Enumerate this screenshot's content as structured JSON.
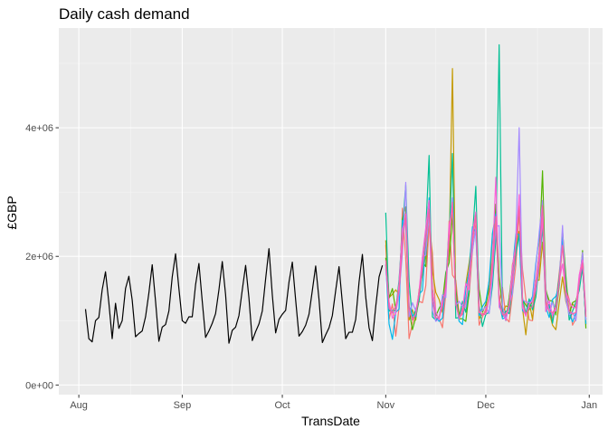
{
  "chart_data": {
    "type": "line",
    "title": "Daily cash demand",
    "xlabel": "TransDate",
    "ylabel": "£GBP",
    "x_ticks": [
      "Aug",
      "Sep",
      "Oct",
      "Nov",
      "Dec",
      "Jan"
    ],
    "y_ticks": [
      "0e+00",
      "2e+06",
      "4e+06"
    ],
    "y_tick_values": [
      0,
      2000000,
      4000000
    ],
    "ylim": [
      -150000,
      5550000
    ],
    "xlim": [
      "2017-07-26",
      "2018-01-05"
    ],
    "grid": true,
    "legend": "none",
    "colors": {
      "panel_bg": "#EBEBEB",
      "grid_major": "#FFFFFF",
      "grid_minor": "#F5F5F5",
      "history": "#000000",
      "forecasts": [
        "#F8766D",
        "#C49A00",
        "#53B400",
        "#00C094",
        "#00B6EB",
        "#A58AFF",
        "#FB61D7",
        "#F564A3"
      ]
    },
    "history": {
      "name": "",
      "start_date": "2017-08-03",
      "values": [
        1180000,
        720000,
        670000,
        1000000,
        1050000,
        1480000,
        1760000,
        1280000,
        720000,
        1270000,
        880000,
        1000000,
        1500000,
        1690000,
        1320000,
        750000,
        800000,
        840000,
        1060000,
        1430000,
        1870000,
        1300000,
        680000,
        900000,
        940000,
        1150000,
        1680000,
        2040000,
        1500000,
        1000000,
        960000,
        1060000,
        1060000,
        1560000,
        1890000,
        1300000,
        740000,
        840000,
        960000,
        1110000,
        1480000,
        1920000,
        1400000,
        650000,
        850000,
        900000,
        1080000,
        1480000,
        1860000,
        1350000,
        690000,
        830000,
        950000,
        1150000,
        1650000,
        2120000,
        1400000,
        810000,
        1020000,
        1100000,
        1160000,
        1600000,
        1910000,
        1320000,
        760000,
        830000,
        930000,
        1100000,
        1470000,
        1850000,
        1330000,
        660000,
        780000,
        890000,
        1080000,
        1470000,
        1840000,
        1280000,
        720000,
        820000,
        820000,
        1020000,
        1600000,
        2030000,
        1370000,
        890000,
        690000,
        1220000,
        1680000,
        1860000
      ]
    },
    "forecast": {
      "start_date": "2017-11-01",
      "n_series": 8,
      "series": [
        {
          "color": "#F8766D",
          "values": [
            2180000,
            1020000,
            1260000,
            760000,
            1210000,
            2750000,
            1960000,
            720000,
            960000,
            1120000,
            1300000,
            1280000,
            1540000,
            2480000,
            2050000,
            1110000,
            1040000,
            890000,
            1420000,
            2550000,
            1710000,
            1630000,
            1090000,
            1200000,
            1150000,
            1400000,
            2080000,
            2500000,
            930000,
            1060000,
            1180000,
            1630000,
            1930000,
            2800000,
            1280000,
            1520000,
            1040000,
            980000,
            1410000,
            1860000,
            2690000,
            1800000,
            1340000,
            1010000,
            1000000,
            1500000,
            1780000,
            2540000,
            1310000,
            1170000,
            1030000,
            1280000,
            1740000,
            2240000,
            1510000,
            1330000,
            930000,
            1030000,
            1690000,
            1990000,
            940000
          ]
        },
        {
          "color": "#C49A00",
          "values": [
            2250000,
            1360000,
            1410000,
            1480000,
            1410000,
            2280000,
            2670000,
            1010000,
            1170000,
            1010000,
            1480000,
            1710000,
            2030000,
            2890000,
            1780000,
            1440000,
            1330000,
            1130000,
            1660000,
            2060000,
            4920000,
            1300000,
            1120000,
            1100000,
            1570000,
            1900000,
            2300000,
            2660000,
            1030000,
            1110000,
            1090000,
            1380000,
            2350000,
            2500000,
            1370000,
            1120000,
            1230000,
            1210000,
            1880000,
            2080000,
            2390000,
            1190000,
            780000,
            1290000,
            1020000,
            1630000,
            1630000,
            2220000,
            1500000,
            1140000,
            930000,
            860000,
            1280000,
            1680000,
            1300000,
            1130000,
            1260000,
            1200000,
            1540000,
            1860000,
            980000
          ]
        },
        {
          "color": "#53B400",
          "values": [
            1980000,
            1350000,
            1500000,
            1160000,
            1460000,
            2580000,
            2770000,
            1170000,
            860000,
            1050000,
            1330000,
            1920000,
            1840000,
            2780000,
            1490000,
            1070000,
            1190000,
            1290000,
            1750000,
            1900000,
            2650000,
            1490000,
            1030000,
            1030000,
            990000,
            1440000,
            2390000,
            2410000,
            1490000,
            1130000,
            1250000,
            1500000,
            1730000,
            2810000,
            1690000,
            1210000,
            1000000,
            1360000,
            1810000,
            2230000,
            2770000,
            1330000,
            1240000,
            1170000,
            1320000,
            1480000,
            2060000,
            3330000,
            1470000,
            1310000,
            1310000,
            1090000,
            1540000,
            2400000,
            1690000,
            1090000,
            1280000,
            1310000,
            1500000,
            2090000,
            880000
          ]
        },
        {
          "color": "#00C094",
          "values": [
            2680000,
            1150000,
            1160000,
            1150000,
            1640000,
            2420000,
            3110000,
            1610000,
            1010000,
            1180000,
            1310000,
            1780000,
            2380000,
            3570000,
            1060000,
            1010000,
            1050000,
            1340000,
            1530000,
            2260000,
            3600000,
            1040000,
            1050000,
            1300000,
            1130000,
            1500000,
            2300000,
            3090000,
            1230000,
            910000,
            1100000,
            1130000,
            1550000,
            2270000,
            5290000,
            1060000,
            1150000,
            1110000,
            1560000,
            2040000,
            2330000,
            1350000,
            1110000,
            1340000,
            1170000,
            1370000,
            1890000,
            2460000,
            1150000,
            1250000,
            960000,
            1280000,
            1670000,
            2310000,
            1580000,
            1010000,
            1150000,
            1290000,
            1470000,
            1830000,
            1020000
          ]
        },
        {
          "color": "#00B6EB",
          "values": [
            1870000,
            950000,
            710000,
            1130000,
            1180000,
            2560000,
            2490000,
            1230000,
            1090000,
            1060000,
            1410000,
            1470000,
            2280000,
            2910000,
            1470000,
            1050000,
            990000,
            1040000,
            1600000,
            2420000,
            2850000,
            1350000,
            990000,
            940000,
            1490000,
            1780000,
            2460000,
            2380000,
            1080000,
            1220000,
            1300000,
            1620000,
            2360000,
            2660000,
            1290000,
            1030000,
            1050000,
            1260000,
            1800000,
            2350000,
            2340000,
            1160000,
            1100000,
            1250000,
            1380000,
            1890000,
            2310000,
            2770000,
            1210000,
            1050000,
            1330000,
            1380000,
            1540000,
            2250000,
            1420000,
            1110000,
            980000,
            1120000,
            1570000,
            1880000,
            950000
          ]
        },
        {
          "color": "#A58AFF",
          "values": [
            1810000,
            1220000,
            1130000,
            1120000,
            1420000,
            2040000,
            3150000,
            1060000,
            1280000,
            1150000,
            1420000,
            1990000,
            2020000,
            2700000,
            1160000,
            990000,
            1030000,
            1400000,
            1360000,
            2360000,
            2910000,
            1240000,
            1300000,
            1220000,
            1210000,
            1730000,
            2090000,
            2440000,
            1130000,
            1160000,
            1220000,
            1110000,
            1700000,
            2460000,
            2480000,
            1230000,
            1000000,
            1260000,
            1420000,
            2280000,
            4000000,
            1330000,
            1290000,
            1280000,
            1300000,
            1830000,
            2370000,
            2870000,
            1450000,
            1140000,
            1280000,
            1150000,
            1600000,
            2480000,
            1330000,
            1090000,
            1130000,
            1000000,
            1590000,
            2060000,
            1010000
          ]
        },
        {
          "color": "#FB61D7",
          "values": [
            1880000,
            1290000,
            1040000,
            1110000,
            1580000,
            2430000,
            2580000,
            1180000,
            1020000,
            1110000,
            1460000,
            2000000,
            2440000,
            2870000,
            1460000,
            1140000,
            1020000,
            1300000,
            1440000,
            2480000,
            2750000,
            1270000,
            1030000,
            1170000,
            1580000,
            1480000,
            2360000,
            2690000,
            1130000,
            1100000,
            1100000,
            1350000,
            1930000,
            3230000,
            1210000,
            1120000,
            1010000,
            1250000,
            1850000,
            2180000,
            2960000,
            1200000,
            1070000,
            1250000,
            1310000,
            1480000,
            1910000,
            2600000,
            1140000,
            1310000,
            1080000,
            1180000,
            1620000,
            1880000,
            1450000,
            1300000,
            1210000,
            1200000,
            1710000,
            1940000,
            1140000
          ]
        },
        {
          "color": "#F564A3",
          "values": [
            1940000,
            1190000,
            1120000,
            1230000,
            1470000,
            2160000,
            2660000,
            1200000,
            1010000,
            1100000,
            1400000,
            1820000,
            2280000,
            2730000,
            1310000,
            1040000,
            1050000,
            1230000,
            1570000,
            2270000,
            2840000,
            1270000,
            1050000,
            1100000,
            1310000,
            1700000,
            2220000,
            2640000,
            1140000,
            1080000,
            1140000,
            1360000,
            1780000,
            2620000,
            1350000,
            1090000,
            1100000,
            1200000,
            1640000,
            2150000,
            2780000,
            1270000,
            1100000,
            1200000,
            1220000,
            1600000,
            2050000,
            2790000,
            1260000,
            1150000,
            1120000,
            1210000,
            1590000,
            2170000,
            1460000,
            1150000,
            1100000,
            1130000,
            1580000,
            1900000,
            1060000
          ]
        }
      ]
    }
  }
}
